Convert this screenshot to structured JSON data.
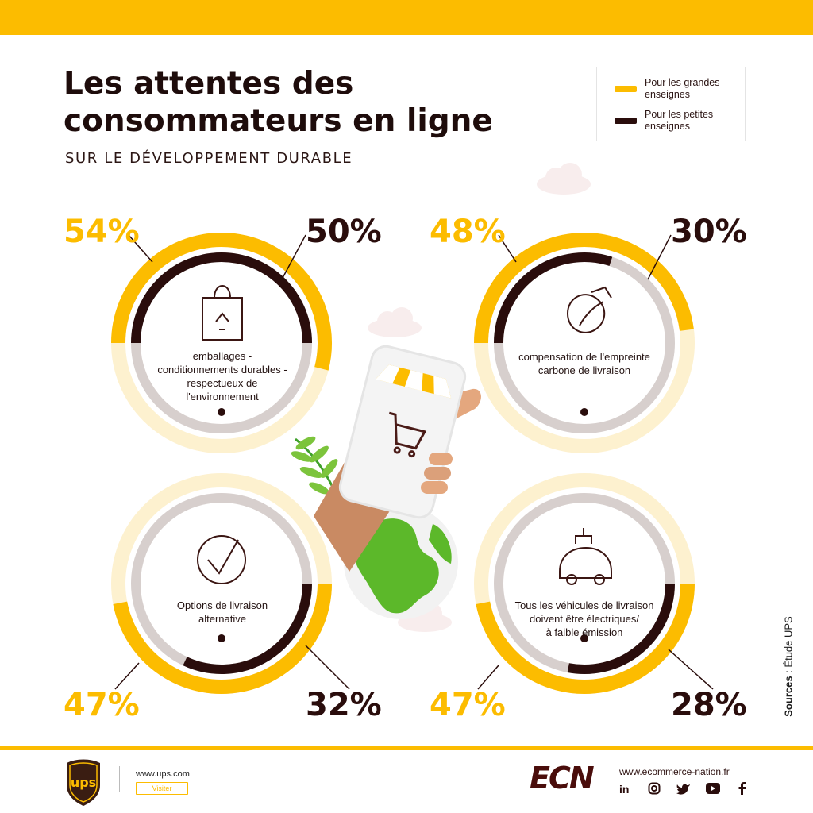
{
  "title": {
    "line1": "Les attentes des",
    "line2": "consommateurs en ligne"
  },
  "subtitle": "SUR LE DÉVELOPPEMENT DURABLE",
  "legend": [
    {
      "label": "Pour les grandes enseignes",
      "color": "#fcbc00"
    },
    {
      "label": "Pour les petites enseignes",
      "color": "#2a0d0c"
    }
  ],
  "chart_data": {
    "type": "donut",
    "series": [
      {
        "name": "Pour les grandes enseignes",
        "color": "#fcbc00"
      },
      {
        "name": "Pour les petites enseignes",
        "color": "#2a0d0c"
      }
    ],
    "categories": [
      "emballages - conditionnements durables - respectueux de l'environnement",
      "compensation de l'empreinte carbone de livraison",
      "Options de livraison alternative",
      "Tous les véhicules de livraison doivent être électriques/ à faible émission"
    ],
    "items": [
      {
        "label_lines": [
          "emballages -",
          "conditionnements durables -",
          "respectueux de",
          "l'environnement"
        ],
        "large": 54,
        "small": 50,
        "large_label": "54%",
        "small_label": "50%",
        "icon": "recycle-bag-icon"
      },
      {
        "label_lines": [
          "compensation de l'empreinte",
          "carbone de livraison"
        ],
        "large": 48,
        "small": 30,
        "large_label": "48%",
        "small_label": "30%",
        "icon": "eco-fuel-leaf-icon"
      },
      {
        "label_lines": [
          "Options de livraison",
          "alternative"
        ],
        "large": 47,
        "small": 32,
        "large_label": "47%",
        "small_label": "32%",
        "icon": "leaf-check-icon"
      },
      {
        "label_lines": [
          "Tous les véhicules de livraison",
          "doivent être électriques/",
          "à faible émission"
        ],
        "large": 47,
        "small": 28,
        "large_label": "47%",
        "small_label": "28%",
        "icon": "electric-car-icon"
      }
    ]
  },
  "sources": {
    "bold": "Sources",
    "rest": " : Étude UPS"
  },
  "footer": {
    "ups_logo": "ups",
    "ups_url": "www.ups.com",
    "ups_visit": "Visiter",
    "ecn_logo": "ECN",
    "ecn_url": "www.ecommerce-nation.fr",
    "social": [
      "in",
      "linkedin-icon",
      "instagram-icon",
      "twitter-icon",
      "youtube-icon",
      "facebook-icon"
    ]
  },
  "colors": {
    "accent": "#fcbc00",
    "dark": "#2a0d0c",
    "track_large": "#fdf1cf",
    "track_small": "#d7cfcd"
  }
}
